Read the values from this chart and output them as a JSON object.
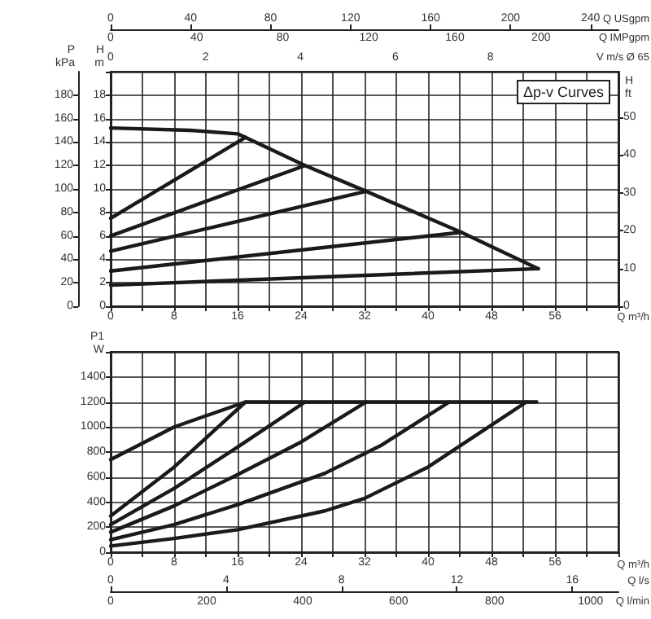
{
  "chart_data": [
    {
      "type": "line",
      "xlabel": "Q m³/h",
      "ylabel": "H m",
      "y2label": "P kPa",
      "y3label": "H ft",
      "x2label": "Q USgpm",
      "xlim": [
        0,
        64
      ],
      "xticks": [
        0,
        {
          "value": 4,
          "label": null
        },
        8,
        {
          "value": 12,
          "label": null
        },
        16,
        {
          "value": 20,
          "label": null
        },
        24,
        {
          "value": 28,
          "label": null
        },
        32,
        {
          "value": 36,
          "label": null
        },
        40,
        {
          "value": 44,
          "label": null
        },
        48,
        {
          "value": 52,
          "label": null
        },
        56,
        {
          "value": 60,
          "label": null
        }
      ],
      "ylim": [
        0,
        20
      ],
      "yticks": [
        0,
        2,
        4,
        6,
        8,
        10,
        12,
        14,
        16,
        18
      ],
      "y2lim": [
        0,
        200
      ],
      "y2ticks": [
        0,
        20,
        40,
        60,
        80,
        100,
        120,
        140,
        160,
        180
      ],
      "y3lim": [
        0,
        62
      ],
      "y3ticks": [
        0,
        10,
        20,
        30,
        40,
        50
      ],
      "x2lim": [
        0,
        254
      ],
      "x2ticks": [
        0,
        40,
        80,
        120,
        160,
        200,
        240
      ],
      "grid": true,
      "marker": "none",
      "line_style": "solid",
      "annotations": [
        "Δp-v Curves",
        "Q IMPgpm",
        "0",
        "40",
        "80",
        "120",
        "160",
        "200",
        "V m/s Ø 65",
        "0",
        "2",
        "4",
        "6",
        "8"
      ],
      "series": [
        {
          "color": "#1a1a1a",
          "x": [
            0,
            17
          ],
          "values": [
            7.5,
            14.4
          ]
        },
        {
          "color": "#1a1a1a",
          "x": [
            0,
            24.5
          ],
          "values": [
            6,
            12
          ]
        },
        {
          "color": "#1a1a1a",
          "x": [
            0,
            32.2
          ],
          "values": [
            4.7,
            9.8
          ]
        },
        {
          "color": "#1a1a1a",
          "x": [
            0,
            44.2
          ],
          "values": [
            3,
            6.3
          ]
        },
        {
          "color": "#1a1a1a",
          "x": [
            0,
            53.9
          ],
          "values": [
            1.8,
            3.2
          ]
        },
        {
          "color": "#1a1a1a",
          "x": [
            0,
            10,
            16,
            17,
            24.5,
            32.2,
            44.2,
            53.9
          ],
          "values": [
            15.2,
            15,
            14.7,
            14.4,
            12,
            9.8,
            6.3,
            3.2
          ]
        }
      ]
    },
    {
      "type": "line",
      "xlabel": "Q m³/h",
      "ylabel": "P1 W",
      "x2label": "Q l/s",
      "xlim": [
        0,
        64
      ],
      "xticks": [
        0,
        {
          "value": 4,
          "label": null
        },
        8,
        {
          "value": 12,
          "label": null
        },
        16,
        {
          "value": 20,
          "label": null
        },
        24,
        {
          "value": 28,
          "label": null
        },
        32,
        {
          "value": 36,
          "label": null
        },
        40,
        {
          "value": 44,
          "label": null
        },
        48,
        {
          "value": 52,
          "label": null
        },
        56,
        {
          "value": 60,
          "label": null
        }
      ],
      "ylim": [
        0,
        1600
      ],
      "yticks": [
        0,
        200,
        400,
        600,
        800,
        1000,
        1200,
        1400
      ],
      "x2lim": [
        0,
        17.6
      ],
      "x2ticks": [
        0,
        4,
        8,
        12,
        16
      ],
      "grid": true,
      "marker": "none",
      "line_style": "solid",
      "annotations": [
        "Q l/min",
        "0",
        "200",
        "400",
        "600",
        "800",
        "1000"
      ],
      "series": [
        {
          "color": "#1a1a1a",
          "x": [
            0,
            8,
            17,
            53.7
          ],
          "values": [
            740,
            1000,
            1200,
            1200
          ]
        },
        {
          "color": "#1a1a1a",
          "x": [
            0,
            8,
            17
          ],
          "values": [
            290,
            680,
            1200
          ]
        },
        {
          "color": "#1a1a1a",
          "x": [
            0,
            8,
            16,
            24.5
          ],
          "values": [
            220,
            510,
            840,
            1200
          ]
        },
        {
          "color": "#1a1a1a",
          "x": [
            0,
            8,
            16,
            24,
            32.2
          ],
          "values": [
            160,
            370,
            620,
            880,
            1200
          ]
        },
        {
          "color": "#1a1a1a",
          "x": [
            0,
            8,
            16,
            27,
            34,
            42.7
          ],
          "values": [
            100,
            220,
            380,
            630,
            850,
            1200
          ]
        },
        {
          "color": "#1a1a1a",
          "x": [
            0,
            8,
            16,
            27,
            32,
            40,
            52.4
          ],
          "values": [
            50,
            110,
            180,
            330,
            430,
            680,
            1200
          ]
        }
      ]
    }
  ]
}
